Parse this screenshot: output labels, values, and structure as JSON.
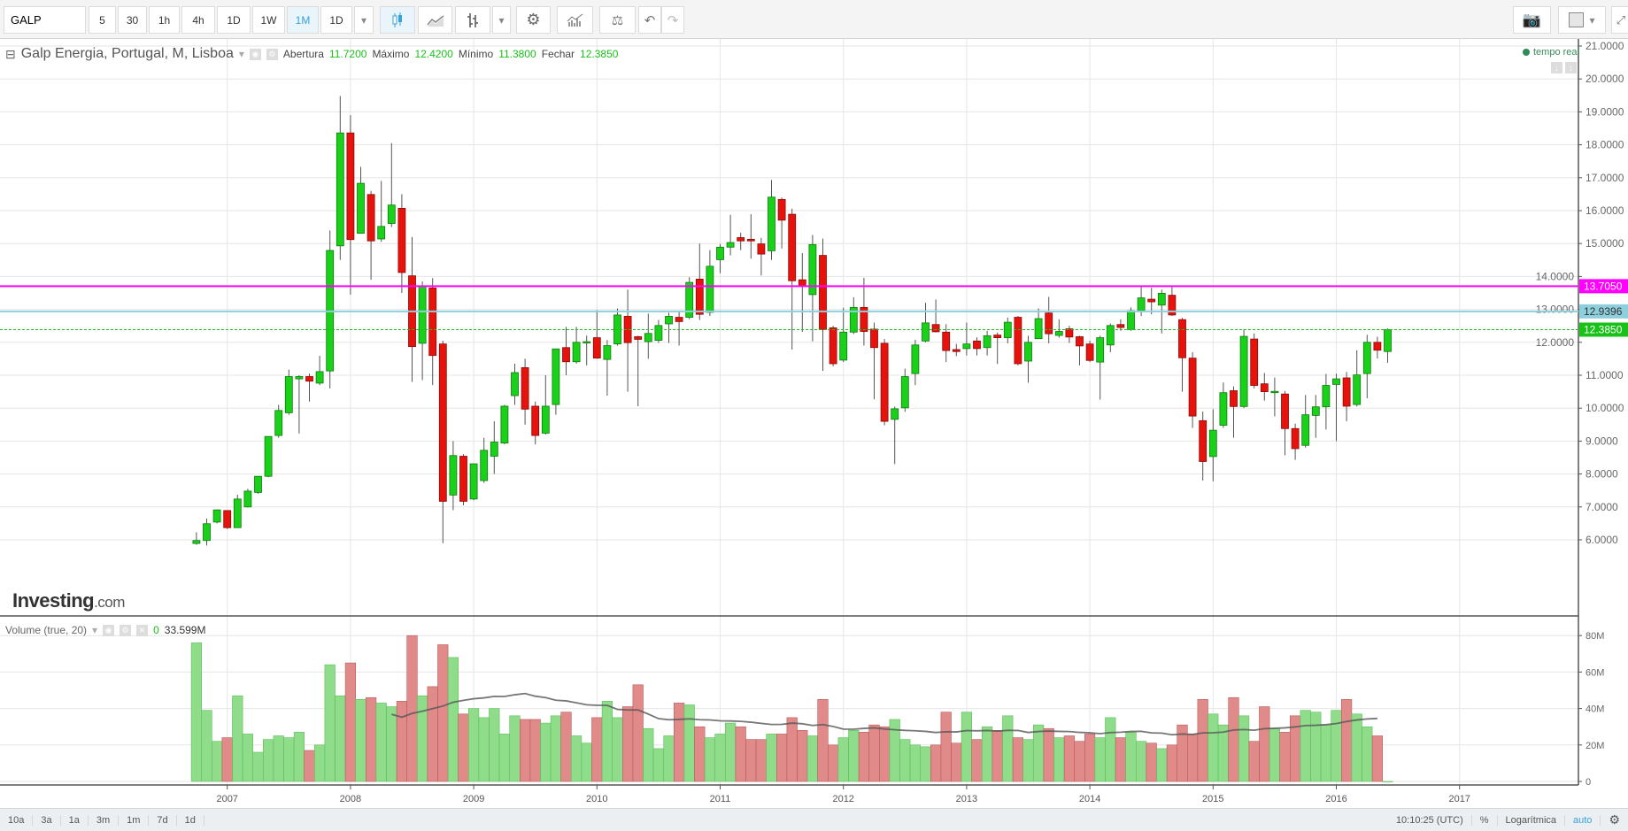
{
  "toolbar": {
    "symbol": "GALP",
    "intervals": [
      "5",
      "30",
      "1h",
      "4h",
      "1D",
      "1W",
      "1M",
      "1D"
    ],
    "active_interval": "1M",
    "icons": [
      "chevron-down-icon",
      "candlestick-icon",
      "line-chart-icon",
      "bar-chart-icon",
      "chevron-down-icon",
      "gear-icon",
      "indicators-icon",
      "balance-icon",
      "undo-icon",
      "redo-icon",
      "camera-icon",
      "color-picker-icon",
      "fullscreen-icon"
    ]
  },
  "legend": {
    "title": "Galp Energia, Portugal, M, Lisboa",
    "open_label": "Abertura",
    "open": "11.7200",
    "high_label": "Máximo",
    "high": "12.4200",
    "low_label": "Mínimo",
    "low": "11.3800",
    "close_label": "Fechar",
    "close": "12.3850",
    "realtime": "tempo real"
  },
  "volume_legend": {
    "title": "Volume (true, 20)",
    "value": "0",
    "ma_value": "33.599M"
  },
  "logo": {
    "brand": "Investing",
    "suffix": ".com"
  },
  "bottom_bar": {
    "ranges": [
      "10a",
      "3a",
      "1a",
      "3m",
      "1m",
      "7d",
      "1d"
    ],
    "time": "10:10:25 (UTC)",
    "percent": "%",
    "log": "Logarítmica",
    "auto": "auto"
  },
  "colors": {
    "up": "#1ad11a",
    "down": "#e8120c",
    "vol_up": "#8fdc8b",
    "vol_down": "#e08a8a",
    "line1": "#ff00ff",
    "line2": "#8ecfdd",
    "last": "#19c119",
    "accent": "#36a3d9"
  },
  "chart_data": {
    "type": "candlestick",
    "start_month": "2006-10",
    "interval": "1M",
    "price_ticks": [
      "6.0000",
      "7.0000",
      "8.0000",
      "9.0000",
      "10.0000",
      "11.0000",
      "12.0000",
      "13.0000",
      "14.0000",
      "15.0000",
      "16.0000",
      "17.0000",
      "18.0000",
      "19.0000",
      "20.0000",
      "21.0000"
    ],
    "ylim": [
      5.8,
      21.2
    ],
    "x_ticks": [
      "2007",
      "2008",
      "2009",
      "2010",
      "2011",
      "2012",
      "2013",
      "2014",
      "2015",
      "2016",
      "2017"
    ],
    "hlines": [
      {
        "value": 13.705,
        "label": "13.7050",
        "color": "#ff00ff"
      },
      {
        "value": 12.9396,
        "label": "12.9396",
        "color": "#8ecfdd"
      },
      {
        "value": 12.385,
        "label": "12.3850",
        "color": "#19c119",
        "dashed": true
      }
    ],
    "ohlc": [
      [
        5.89,
        6.23,
        5.85,
        5.98
      ],
      [
        5.98,
        6.65,
        5.83,
        6.49
      ],
      [
        6.54,
        6.92,
        6.5,
        6.91
      ],
      [
        6.89,
        6.9,
        6.33,
        6.37
      ],
      [
        6.37,
        7.37,
        6.37,
        7.24
      ],
      [
        7.0,
        7.55,
        6.98,
        7.48
      ],
      [
        7.44,
        7.93,
        7.4,
        7.93
      ],
      [
        7.93,
        9.14,
        7.9,
        9.14
      ],
      [
        9.17,
        10.1,
        9.1,
        9.93
      ],
      [
        9.86,
        11.17,
        9.8,
        10.96
      ],
      [
        10.89,
        11.0,
        9.23,
        10.96
      ],
      [
        10.96,
        11.05,
        10.2,
        10.82
      ],
      [
        10.76,
        11.59,
        10.7,
        11.11
      ],
      [
        11.13,
        15.4,
        10.6,
        14.79
      ],
      [
        14.93,
        19.48,
        14.5,
        18.36
      ],
      [
        18.36,
        18.9,
        13.45,
        15.12
      ],
      [
        15.31,
        17.33,
        15.3,
        16.83
      ],
      [
        16.49,
        16.6,
        13.9,
        15.08
      ],
      [
        15.14,
        16.9,
        15.05,
        15.52
      ],
      [
        15.61,
        18.05,
        15.5,
        16.17
      ],
      [
        16.07,
        16.5,
        13.5,
        14.12
      ],
      [
        14.02,
        15.2,
        10.8,
        11.87
      ],
      [
        11.97,
        13.85,
        10.85,
        13.71
      ],
      [
        13.65,
        13.95,
        10.7,
        11.6
      ],
      [
        11.95,
        12.05,
        5.9,
        7.17
      ],
      [
        7.36,
        9.0,
        6.9,
        8.56
      ],
      [
        8.54,
        8.6,
        7.05,
        7.17
      ],
      [
        7.24,
        8.31,
        7.2,
        8.31
      ],
      [
        7.8,
        9.1,
        7.73,
        8.72
      ],
      [
        8.54,
        9.6,
        8.0,
        8.97
      ],
      [
        8.94,
        10.1,
        8.9,
        10.06
      ],
      [
        10.38,
        11.35,
        10.1,
        11.08
      ],
      [
        11.23,
        11.5,
        9.5,
        9.97
      ],
      [
        10.06,
        10.2,
        8.9,
        9.17
      ],
      [
        9.24,
        11.0,
        9.2,
        10.06
      ],
      [
        10.11,
        11.8,
        9.8,
        11.8
      ],
      [
        11.84,
        12.47,
        11.0,
        11.41
      ],
      [
        11.41,
        12.47,
        11.35,
        12.0
      ],
      [
        12.0,
        12.2,
        11.3,
        12.02
      ],
      [
        12.14,
        12.98,
        11.5,
        11.52
      ],
      [
        11.48,
        12.07,
        10.38,
        11.9
      ],
      [
        11.95,
        13.03,
        11.9,
        12.83
      ],
      [
        12.79,
        13.6,
        10.5,
        11.99
      ],
      [
        12.17,
        12.2,
        10.06,
        12.09
      ],
      [
        12.02,
        12.87,
        11.5,
        12.27
      ],
      [
        12.06,
        12.68,
        11.98,
        12.51
      ],
      [
        12.56,
        12.9,
        11.98,
        12.79
      ],
      [
        12.76,
        12.94,
        11.9,
        12.63
      ],
      [
        12.76,
        13.98,
        12.7,
        13.82
      ],
      [
        13.92,
        15.0,
        12.68,
        12.85
      ],
      [
        12.91,
        14.8,
        12.8,
        14.31
      ],
      [
        14.51,
        14.99,
        14.1,
        14.89
      ],
      [
        14.89,
        15.87,
        14.64,
        15.03
      ],
      [
        15.18,
        15.33,
        14.8,
        15.08
      ],
      [
        15.13,
        15.89,
        14.54,
        15.08
      ],
      [
        14.99,
        15.17,
        14.03,
        14.68
      ],
      [
        14.78,
        16.93,
        14.5,
        16.41
      ],
      [
        16.34,
        16.4,
        14.85,
        15.71
      ],
      [
        15.89,
        16.06,
        11.78,
        13.87
      ],
      [
        13.9,
        14.71,
        12.32,
        13.7
      ],
      [
        13.45,
        15.26,
        12.03,
        14.97
      ],
      [
        14.64,
        15.15,
        11.13,
        12.39
      ],
      [
        12.44,
        12.5,
        11.27,
        11.35
      ],
      [
        11.46,
        13.05,
        11.4,
        12.31
      ],
      [
        12.31,
        13.37,
        12.25,
        13.06
      ],
      [
        13.06,
        13.96,
        11.9,
        12.33
      ],
      [
        12.4,
        12.6,
        10.27,
        11.84
      ],
      [
        11.97,
        12.1,
        9.48,
        9.6
      ],
      [
        9.66,
        10.05,
        8.3,
        9.98
      ],
      [
        10.01,
        11.2,
        9.89,
        10.96
      ],
      [
        11.05,
        12.08,
        10.7,
        11.92
      ],
      [
        12.04,
        13.2,
        12.0,
        12.59
      ],
      [
        12.54,
        13.3,
        12.3,
        12.32
      ],
      [
        12.31,
        12.55,
        11.4,
        11.75
      ],
      [
        11.78,
        11.95,
        11.58,
        11.72
      ],
      [
        11.81,
        12.6,
        11.6,
        11.95
      ],
      [
        12.04,
        12.15,
        11.6,
        11.81
      ],
      [
        11.84,
        12.35,
        11.6,
        12.2
      ],
      [
        12.22,
        12.3,
        11.34,
        12.14
      ],
      [
        12.14,
        12.75,
        11.97,
        12.61
      ],
      [
        12.76,
        12.8,
        11.3,
        11.35
      ],
      [
        11.43,
        12.2,
        10.77,
        12.0
      ],
      [
        12.11,
        13.03,
        12.1,
        12.72
      ],
      [
        12.89,
        13.38,
        11.97,
        12.26
      ],
      [
        12.21,
        12.7,
        12.14,
        12.33
      ],
      [
        12.41,
        12.5,
        11.98,
        12.16
      ],
      [
        12.17,
        12.2,
        11.3,
        11.89
      ],
      [
        11.95,
        12.05,
        11.4,
        11.45
      ],
      [
        11.4,
        12.2,
        10.26,
        12.14
      ],
      [
        11.92,
        12.57,
        11.7,
        12.51
      ],
      [
        12.54,
        12.7,
        12.35,
        12.45
      ],
      [
        12.39,
        13.06,
        12.35,
        12.96
      ],
      [
        12.96,
        13.72,
        12.8,
        13.35
      ],
      [
        13.31,
        13.66,
        12.85,
        13.23
      ],
      [
        13.13,
        13.6,
        12.27,
        13.49
      ],
      [
        13.43,
        13.72,
        12.8,
        12.83
      ],
      [
        12.69,
        12.74,
        10.5,
        11.53
      ],
      [
        11.52,
        11.7,
        9.4,
        9.76
      ],
      [
        9.62,
        9.9,
        7.8,
        8.38
      ],
      [
        8.53,
        9.97,
        7.78,
        9.33
      ],
      [
        9.48,
        10.78,
        9.4,
        10.47
      ],
      [
        10.53,
        10.66,
        9.1,
        10.05
      ],
      [
        10.05,
        12.4,
        10.0,
        12.18
      ],
      [
        12.1,
        12.27,
        10.6,
        10.69
      ],
      [
        10.74,
        11.07,
        10.23,
        10.5
      ],
      [
        10.51,
        10.93,
        9.75,
        10.51
      ],
      [
        10.43,
        10.52,
        8.57,
        9.38
      ],
      [
        9.38,
        9.53,
        8.43,
        8.77
      ],
      [
        8.87,
        10.4,
        8.8,
        9.8
      ],
      [
        9.78,
        10.4,
        9.1,
        10.04
      ],
      [
        10.04,
        11.04,
        9.35,
        10.69
      ],
      [
        10.72,
        11.05,
        9.0,
        10.89
      ],
      [
        10.92,
        11.1,
        9.6,
        10.06
      ],
      [
        10.11,
        11.76,
        10.05,
        11.01
      ],
      [
        11.05,
        12.23,
        10.3,
        12.0
      ],
      [
        12.0,
        12.17,
        11.51,
        11.76
      ],
      [
        11.72,
        12.42,
        11.38,
        12.385
      ]
    ],
    "volume_millions": [
      76,
      39,
      22,
      24,
      47,
      26,
      16,
      23,
      25,
      24,
      27,
      17,
      20,
      64,
      47,
      65,
      45,
      46,
      43,
      41,
      44,
      80,
      47,
      52,
      75,
      68,
      37,
      40,
      35,
      40,
      26,
      36,
      34,
      34,
      32,
      36,
      38,
      25,
      21,
      35,
      44,
      35,
      41,
      53,
      29,
      18,
      25,
      43,
      42,
      30,
      24,
      26,
      32,
      30,
      23,
      23,
      26,
      26,
      35,
      28,
      25,
      45,
      20,
      24,
      28,
      27,
      31,
      30,
      34,
      23,
      20,
      19,
      20,
      38,
      21,
      38,
      23,
      30,
      28,
      36,
      24,
      23,
      31,
      29,
      24,
      25,
      22,
      26,
      24,
      35,
      24,
      27,
      22,
      21,
      18,
      20,
      31,
      26,
      45,
      37,
      31,
      46,
      36,
      22,
      41,
      29,
      27,
      36,
      39,
      38,
      31,
      39,
      45,
      37,
      30,
      25,
      0
    ],
    "volume_ticks": [
      "0",
      "20M",
      "40M",
      "60M",
      "80M"
    ],
    "volume_ylim": [
      0,
      80
    ],
    "volume_ma_period": 20
  }
}
